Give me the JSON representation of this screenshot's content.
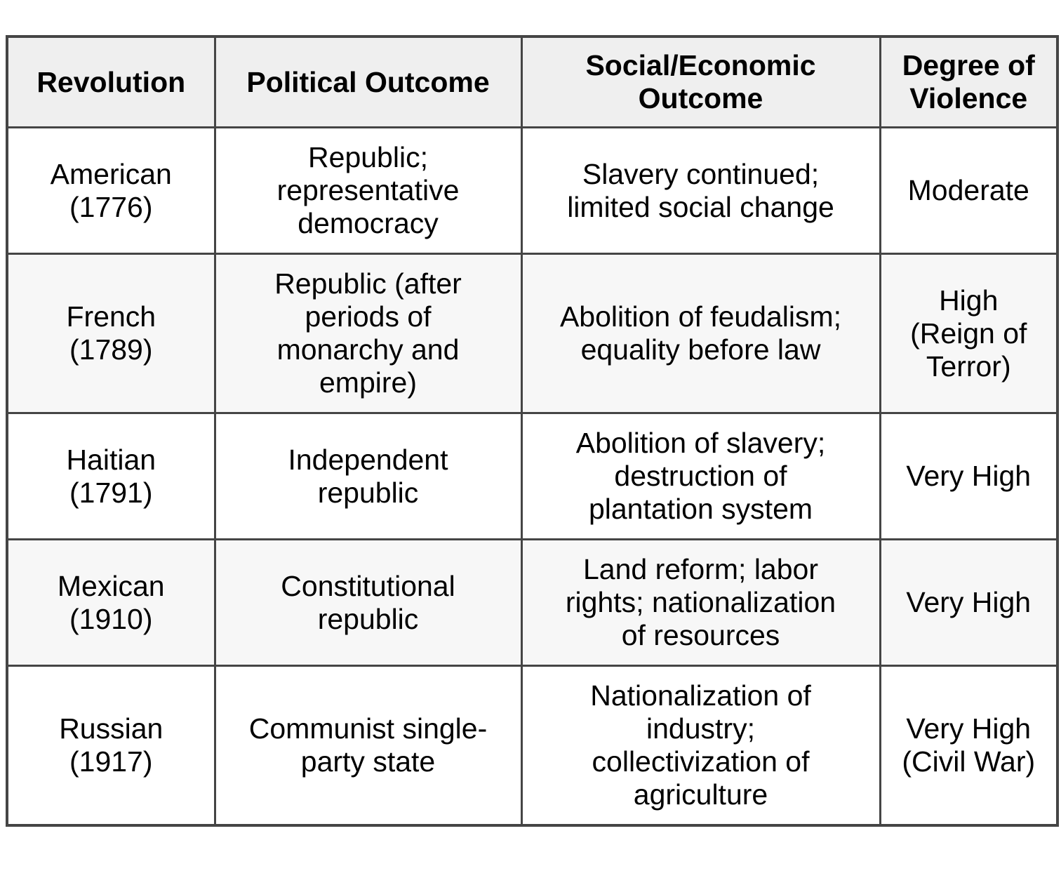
{
  "page": {
    "background_color": "#ffffff",
    "text_color": "#000000"
  },
  "table": {
    "border_color": "#454545",
    "header_background": "#efefef",
    "stripe_background": "#f7f7f7",
    "row_background": "#ffffff",
    "headers": [
      {
        "label": "Revolution"
      },
      {
        "label": "Political Outcome"
      },
      {
        "label": "Social/Economic\nOutcome"
      },
      {
        "label": "Degree of\nViolence"
      }
    ],
    "rows": [
      {
        "revolution": "American\n(1776)",
        "political_outcome": "Republic;\nrepresentative\ndemocracy",
        "social_economic_outcome": "Slavery continued;\nlimited social change",
        "degree_of_violence": "Moderate"
      },
      {
        "revolution": "French\n(1789)",
        "political_outcome": "Republic (after\nperiods of\nmonarchy and\nempire)",
        "social_economic_outcome": "Abolition of feudalism;\nequality before law",
        "degree_of_violence": "High\n(Reign of\nTerror)"
      },
      {
        "revolution": "Haitian\n(1791)",
        "political_outcome": "Independent\nrepublic",
        "social_economic_outcome": "Abolition of slavery;\ndestruction of\nplantation system",
        "degree_of_violence": "Very High"
      },
      {
        "revolution": "Mexican\n(1910)",
        "political_outcome": "Constitutional\nrepublic",
        "social_economic_outcome": "Land reform; labor\nrights; nationalization\nof resources",
        "degree_of_violence": "Very High"
      },
      {
        "revolution": "Russian\n(1917)",
        "political_outcome": "Communist single-\nparty state",
        "social_economic_outcome": "Nationalization of\nindustry;\ncollectivization of\nagriculture",
        "degree_of_violence": "Very High\n(Civil War)"
      }
    ]
  }
}
